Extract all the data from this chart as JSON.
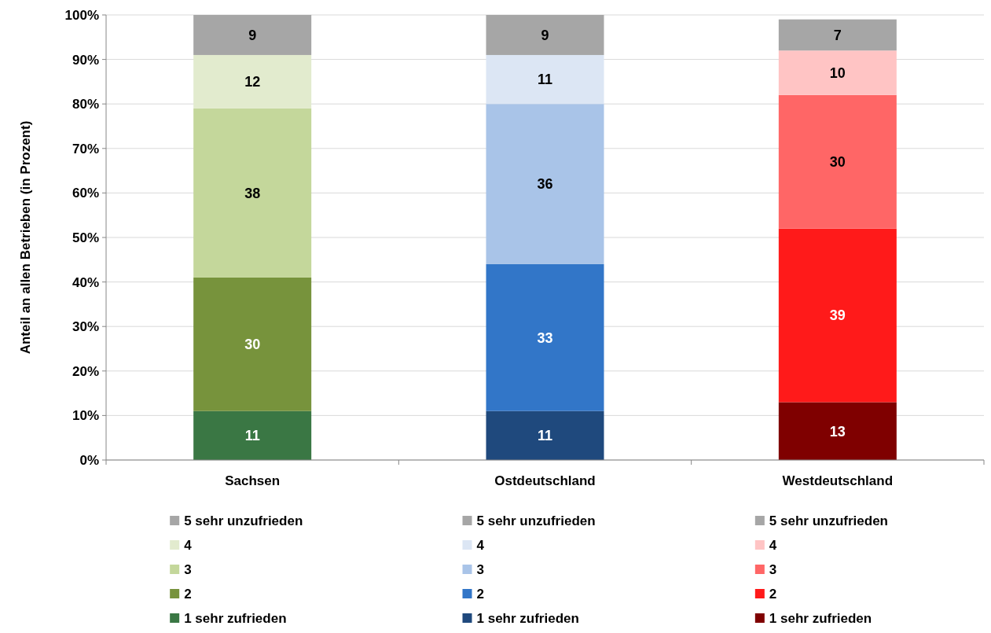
{
  "chart_data": {
    "type": "bar",
    "stacked": true,
    "data_labels": true,
    "grid": "y",
    "legend": "bottom",
    "ylabel": "Anteil an allen Betrieben (in Prozent)",
    "categories": [
      "Sachsen",
      "Ostdeutschland",
      "Westdeutschland"
    ],
    "ylim": [
      0,
      100
    ],
    "yticks": [
      {
        "value": 0,
        "label": "0%"
      },
      {
        "value": 10,
        "label": "10%"
      },
      {
        "value": 20,
        "label": "20%"
      },
      {
        "value": 30,
        "label": "30%"
      },
      {
        "value": 40,
        "label": "40%"
      },
      {
        "value": 50,
        "label": "50%"
      },
      {
        "value": 60,
        "label": "60%"
      },
      {
        "value": 70,
        "label": "70%"
      },
      {
        "value": 80,
        "label": "80%"
      },
      {
        "value": 90,
        "label": "90%"
      },
      {
        "value": 100,
        "label": "100%"
      }
    ],
    "series": [
      {
        "name": "1 sehr zufrieden",
        "color": "#3a7744",
        "values": [
          11,
          null,
          null
        ]
      },
      {
        "name": "2",
        "color": "#77933c",
        "values": [
          30,
          null,
          null
        ]
      },
      {
        "name": "3",
        "color": "#c4d79b",
        "values": [
          38,
          null,
          null
        ]
      },
      {
        "name": "4",
        "color": "#e2ebce",
        "values": [
          12,
          null,
          null
        ]
      },
      {
        "name": "5 sehr unzufrieden",
        "color": "#a6a6a6",
        "values": [
          9,
          null,
          null
        ]
      },
      {
        "name": "1 sehr zufrieden",
        "color": "#1f497d",
        "values": [
          null,
          11,
          null
        ]
      },
      {
        "name": "2",
        "color": "#3276c8",
        "values": [
          null,
          33,
          null
        ]
      },
      {
        "name": "3",
        "color": "#a9c4e8",
        "values": [
          null,
          36,
          null
        ]
      },
      {
        "name": "4",
        "color": "#dce6f4",
        "values": [
          null,
          11,
          null
        ]
      },
      {
        "name": "5 sehr unzufrieden",
        "color": "#a6a6a6",
        "values": [
          null,
          9,
          null
        ]
      },
      {
        "name": "1 sehr zufrieden",
        "color": "#7f0000",
        "values": [
          null,
          null,
          13
        ]
      },
      {
        "name": "2",
        "color": "#ff1a1a",
        "values": [
          null,
          null,
          39
        ]
      },
      {
        "name": "3",
        "color": "#ff6666",
        "values": [
          null,
          null,
          30
        ]
      },
      {
        "name": "4",
        "color": "#ffc4c4",
        "values": [
          null,
          null,
          10
        ]
      },
      {
        "name": "5 sehr unzufrieden",
        "color": "#a6a6a6",
        "values": [
          null,
          null,
          7
        ]
      }
    ]
  }
}
